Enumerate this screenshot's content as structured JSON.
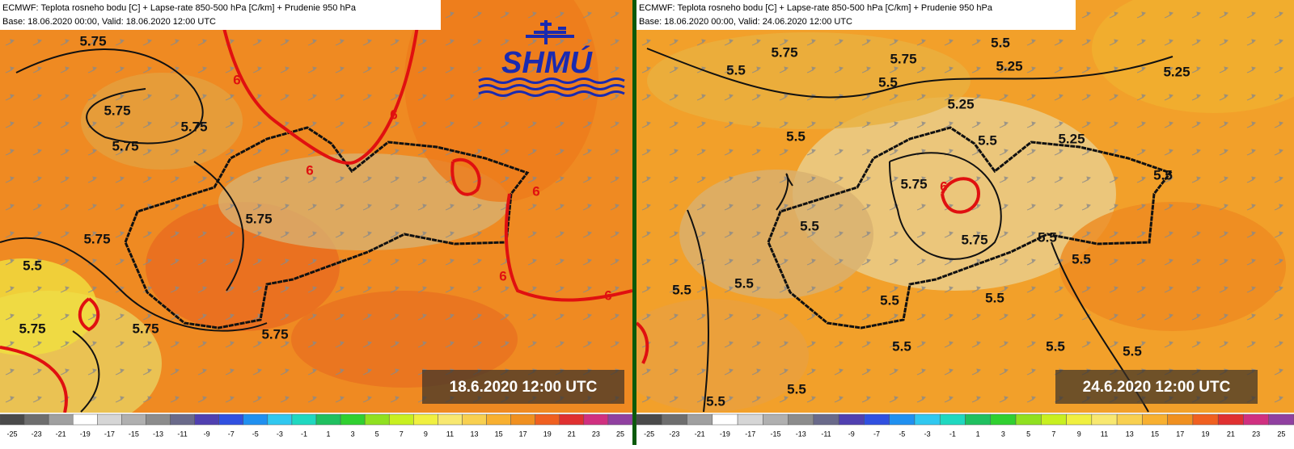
{
  "panels": [
    {
      "header_line1": "ECMWF: Teplota rosneho bodu [C] + Lapse-rate 850-500 hPa [C/km] + Prudenie 950 hPa",
      "header_line2": "Base: 18.06.2020 00:00, Valid: 18.06.2020 12:00 UTC",
      "timestamp": "18.6.2020 12:00 UTC",
      "logo": "SHMÚ",
      "contour_labels": [
        "5.75",
        "5.75",
        "5.75",
        "5.75",
        "5.75",
        "5.75",
        "5.5",
        "5.75",
        "5.75",
        "5.75"
      ],
      "red_contour_labels": [
        "6",
        "6",
        "6",
        "6",
        "6",
        "6"
      ]
    },
    {
      "header_line1": "ECMWF: Teplota rosneho bodu [C] + Lapse-rate 850-500 hPa [C/km] + Prudenie 950 hPa",
      "header_line2": "Base: 18.06.2020 00:00, Valid: 24.06.2020 12:00 UTC",
      "timestamp": "24.6.2020 12:00 UTC",
      "contour_labels": [
        "5.75",
        "5.75",
        "5.75",
        "5.75",
        "5.5",
        "5.5",
        "5.5",
        "5.5",
        "5.5",
        "5.5",
        "5.5",
        "5.5",
        "5.5",
        "5.5",
        "5.5",
        "5.5",
        "5.5",
        "5.5",
        "5.5",
        "5.5",
        "5.5",
        "5.5",
        "5.25",
        "5.25",
        "5.25",
        "5.25"
      ],
      "red_contour_labels": [
        "6"
      ]
    }
  ],
  "contour_color": "#111111",
  "red_contour_color": "#e01010",
  "colorbar": {
    "ticks": [
      -25,
      -23,
      -21,
      -19,
      -17,
      -15,
      -13,
      -11,
      -9,
      -7,
      -5,
      -3,
      -1,
      1,
      3,
      5,
      7,
      9,
      11,
      13,
      15,
      17,
      19,
      21,
      23,
      25
    ],
    "colors": [
      "#4a4a4a",
      "#6e6e6e",
      "#a0a0a0",
      "#ffffff",
      "#d6d6d6",
      "#b0b0b0",
      "#8c8c8c",
      "#6a6a8a",
      "#5040b0",
      "#3050e0",
      "#2090f0",
      "#30c8f0",
      "#20d8c0",
      "#20c060",
      "#30d030",
      "#90e020",
      "#c8f020",
      "#f0f040",
      "#f8e870",
      "#f8d050",
      "#f8b030",
      "#f09020",
      "#f06020",
      "#e03030",
      "#d03080",
      "#9040a0"
    ]
  }
}
